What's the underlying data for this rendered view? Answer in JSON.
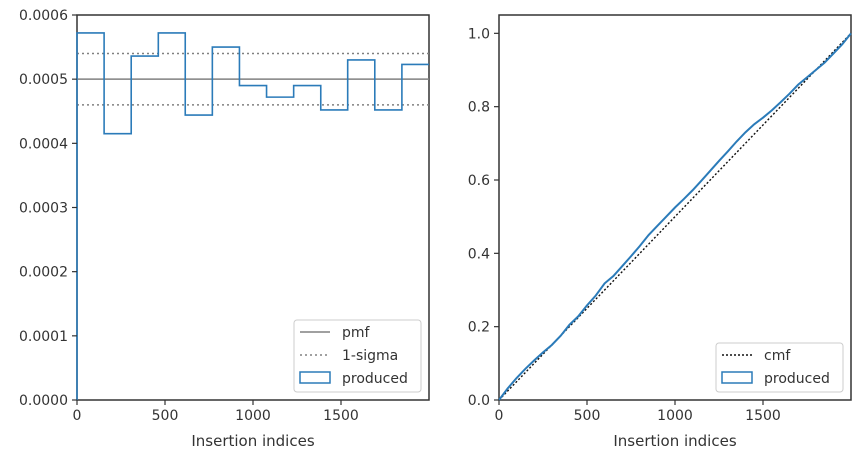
{
  "colors": {
    "hist": "#2b7bb9",
    "pmf": "#808080",
    "sigma": "#808080",
    "cmf": "#111111",
    "axes": "#333333"
  },
  "chart_data": [
    {
      "type": "histogram",
      "xlabel": "Insertion indices",
      "ylabel": "",
      "xlim": [
        0,
        2000
      ],
      "ylim": [
        0,
        0.0006
      ],
      "xticks": [
        "0",
        "500",
        "1000",
        "1500"
      ],
      "yticks": [
        "0.0000",
        "0.0001",
        "0.0002",
        "0.0003",
        "0.0004",
        "0.0005",
        "0.0006"
      ],
      "grid": false,
      "legend_position": "bottom-right",
      "pmf": 0.0005,
      "sigma_band": [
        0.00046,
        0.00054
      ],
      "bin_edges": [
        0,
        154,
        308,
        462,
        615,
        769,
        923,
        1077,
        1231,
        1385,
        1538,
        1692,
        1846,
        2000
      ],
      "values": [
        0.000572,
        0.000415,
        0.000536,
        0.000572,
        0.000444,
        0.00055,
        0.00049,
        0.000472,
        0.00049,
        0.000452,
        0.00053,
        0.000452,
        0.000523
      ],
      "legend": [
        "pmf",
        "1-sigma",
        "produced"
      ]
    },
    {
      "type": "line",
      "xlabel": "Insertion indices",
      "ylabel": "",
      "xlim": [
        0,
        2000
      ],
      "ylim": [
        0,
        1.05
      ],
      "xticks": [
        "0",
        "500",
        "1000",
        "1500"
      ],
      "yticks": [
        "0.0",
        "0.2",
        "0.4",
        "0.6",
        "0.8",
        "1.0"
      ],
      "grid": false,
      "legend_position": "bottom-right",
      "series": [
        {
          "name": "cmf",
          "x": [
            0,
            2000
          ],
          "y": [
            0,
            1.0
          ]
        },
        {
          "name": "produced",
          "x": [
            0,
            50,
            100,
            150,
            200,
            250,
            300,
            350,
            400,
            450,
            500,
            550,
            600,
            650,
            700,
            750,
            800,
            850,
            900,
            950,
            1000,
            1050,
            1100,
            1150,
            1200,
            1250,
            1300,
            1350,
            1400,
            1450,
            1500,
            1550,
            1600,
            1650,
            1700,
            1750,
            1800,
            1850,
            1900,
            1950,
            2000
          ],
          "y": [
            0,
            0.032,
            0.06,
            0.085,
            0.108,
            0.13,
            0.15,
            0.175,
            0.205,
            0.228,
            0.258,
            0.285,
            0.318,
            0.338,
            0.365,
            0.392,
            0.42,
            0.45,
            0.475,
            0.5,
            0.525,
            0.548,
            0.572,
            0.598,
            0.625,
            0.652,
            0.678,
            0.705,
            0.73,
            0.752,
            0.77,
            0.79,
            0.812,
            0.835,
            0.86,
            0.88,
            0.9,
            0.92,
            0.945,
            0.97,
            1.0
          ]
        }
      ],
      "legend": [
        "cmf",
        "produced"
      ]
    }
  ]
}
